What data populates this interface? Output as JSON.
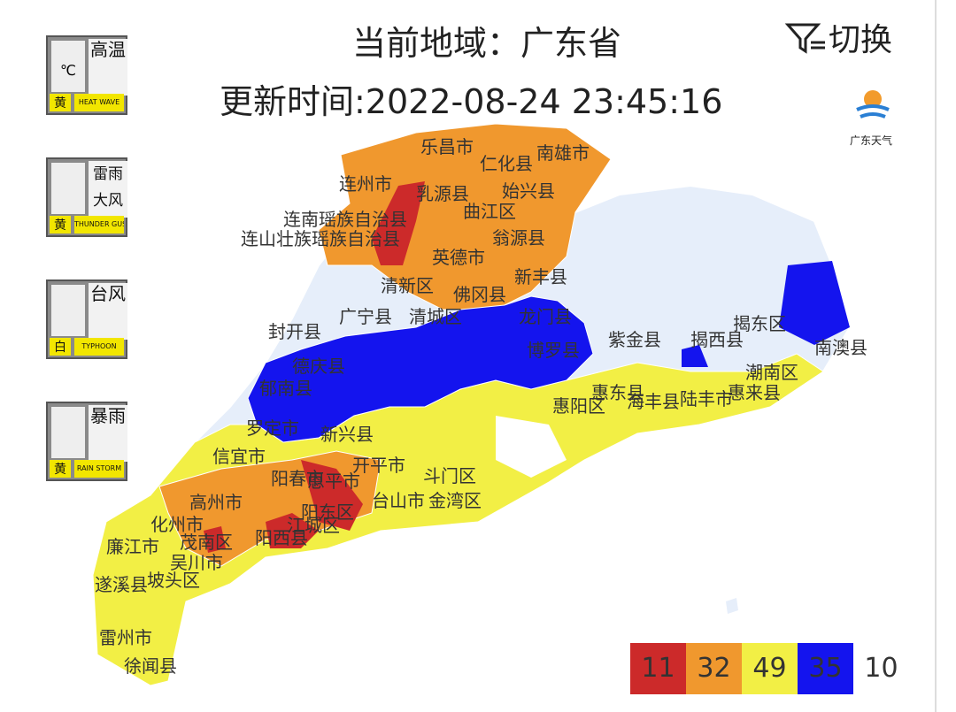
{
  "header": {
    "region_title": "当前地域：广东省",
    "update_time": "更新时间:2022-08-24 23:45:16",
    "switch_button": "切换",
    "logo_text": "广东天气"
  },
  "warnings": [
    {
      "title": "高温",
      "level": "黄",
      "english": "HEAT WAVE",
      "symbol": "℃"
    },
    {
      "title": "雷雨大风",
      "level": "黄",
      "english": "THUNDER GUST"
    },
    {
      "title": "台风",
      "level": "白",
      "english": "TYPHOON"
    },
    {
      "title": "暴雨",
      "level": "黄",
      "english": "RAIN STORM"
    }
  ],
  "map": {
    "labels": [
      "乐昌市",
      "南雄市",
      "仁化县",
      "连州市",
      "乳源县",
      "始兴县",
      "曲江区",
      "连南瑶族自治县",
      "连山壮族瑶族自治县",
      "翁源县",
      "英德市",
      "新丰县",
      "清新区",
      "佛冈县",
      "封开县",
      "广宁县",
      "清城区",
      "龙门县",
      "紫金县",
      "揭西县",
      "揭东区",
      "博罗县",
      "德庆县",
      "郁南县",
      "罗定市",
      "新兴县",
      "惠东县",
      "海丰县",
      "陆丰市",
      "惠来县",
      "潮南区",
      "惠阳区",
      "信宜市",
      "阳春市",
      "开平市",
      "恩平市",
      "台山市",
      "金湾区",
      "斗门区",
      "高州市",
      "阳东区",
      "化州市",
      "茂南区",
      "阳西县",
      "廉江市",
      "吴川市",
      "遂溪县",
      "坡头区",
      "雷州市",
      "徐闻县",
      "南澳县",
      "江城区"
    ]
  },
  "legend": [
    {
      "color": "#cc2a2a",
      "count": 11
    },
    {
      "color": "#f0982e",
      "count": 32
    },
    {
      "color": "#f2ef45",
      "count": 49
    },
    {
      "color": "#1414ee",
      "count": 35
    },
    {
      "color": "#ffffff",
      "count": 10
    }
  ]
}
